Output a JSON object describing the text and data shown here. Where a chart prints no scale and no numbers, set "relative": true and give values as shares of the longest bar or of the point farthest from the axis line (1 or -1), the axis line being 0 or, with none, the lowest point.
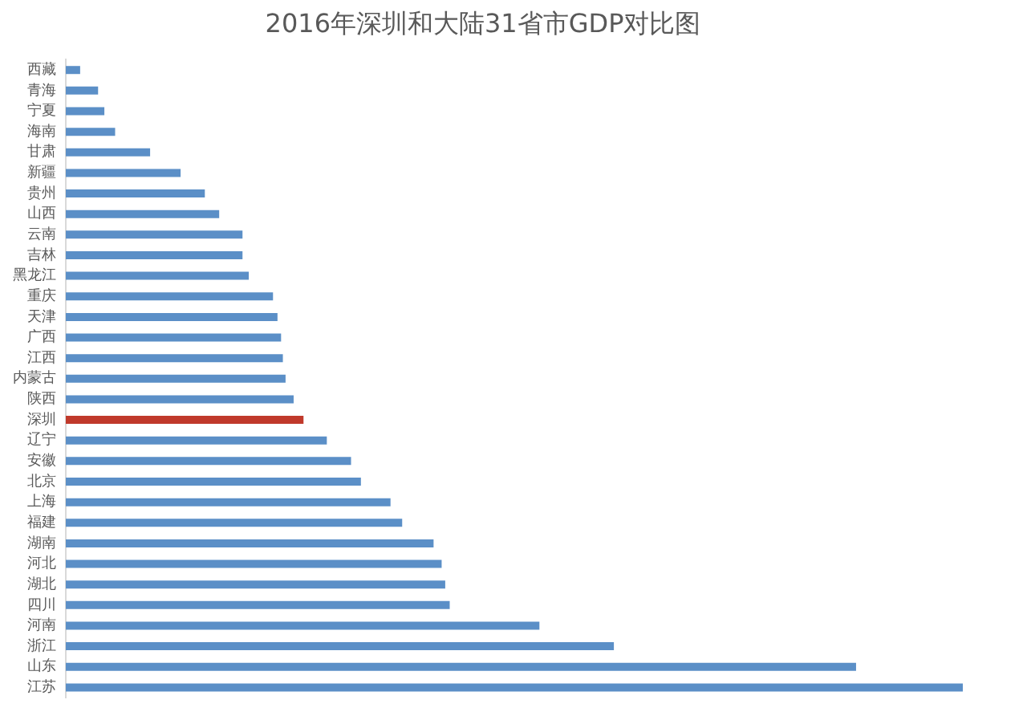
{
  "chart_data": {
    "type": "bar",
    "orientation": "horizontal",
    "relative": true,
    "title": "2016年深圳和大陆31省市GDP对比图",
    "categories": [
      "西藏",
      "青海",
      "宁夏",
      "海南",
      "甘肃",
      "新疆",
      "贵州",
      "山西",
      "云南",
      "吉林",
      "黑龙江",
      "重庆",
      "天津",
      "广西",
      "江西",
      "内蒙古",
      "陕西",
      "深圳",
      "辽宁",
      "安徽",
      "北京",
      "上海",
      "福建",
      "湖南",
      "河北",
      "湖北",
      "四川",
      "河南",
      "浙江",
      "山东",
      "江苏"
    ],
    "values": [
      0.016,
      0.036,
      0.043,
      0.055,
      0.094,
      0.128,
      0.155,
      0.171,
      0.197,
      0.197,
      0.204,
      0.231,
      0.236,
      0.24,
      0.242,
      0.245,
      0.254,
      0.265,
      0.291,
      0.318,
      0.329,
      0.362,
      0.375,
      0.41,
      0.419,
      0.423,
      0.428,
      0.528,
      0.611,
      0.881,
      1
    ],
    "colors": [
      "#5b8fc7",
      "#5b8fc7",
      "#5b8fc7",
      "#5b8fc7",
      "#5b8fc7",
      "#5b8fc7",
      "#5b8fc7",
      "#5b8fc7",
      "#5b8fc7",
      "#5b8fc7",
      "#5b8fc7",
      "#5b8fc7",
      "#5b8fc7",
      "#5b8fc7",
      "#5b8fc7",
      "#5b8fc7",
      "#5b8fc7",
      "#c0392b",
      "#5b8fc7",
      "#5b8fc7",
      "#5b8fc7",
      "#5b8fc7",
      "#5b8fc7",
      "#5b8fc7",
      "#5b8fc7",
      "#5b8fc7",
      "#5b8fc7",
      "#5b8fc7",
      "#5b8fc7",
      "#5b8fc7",
      "#5b8fc7"
    ],
    "grid": false,
    "legend": false
  }
}
